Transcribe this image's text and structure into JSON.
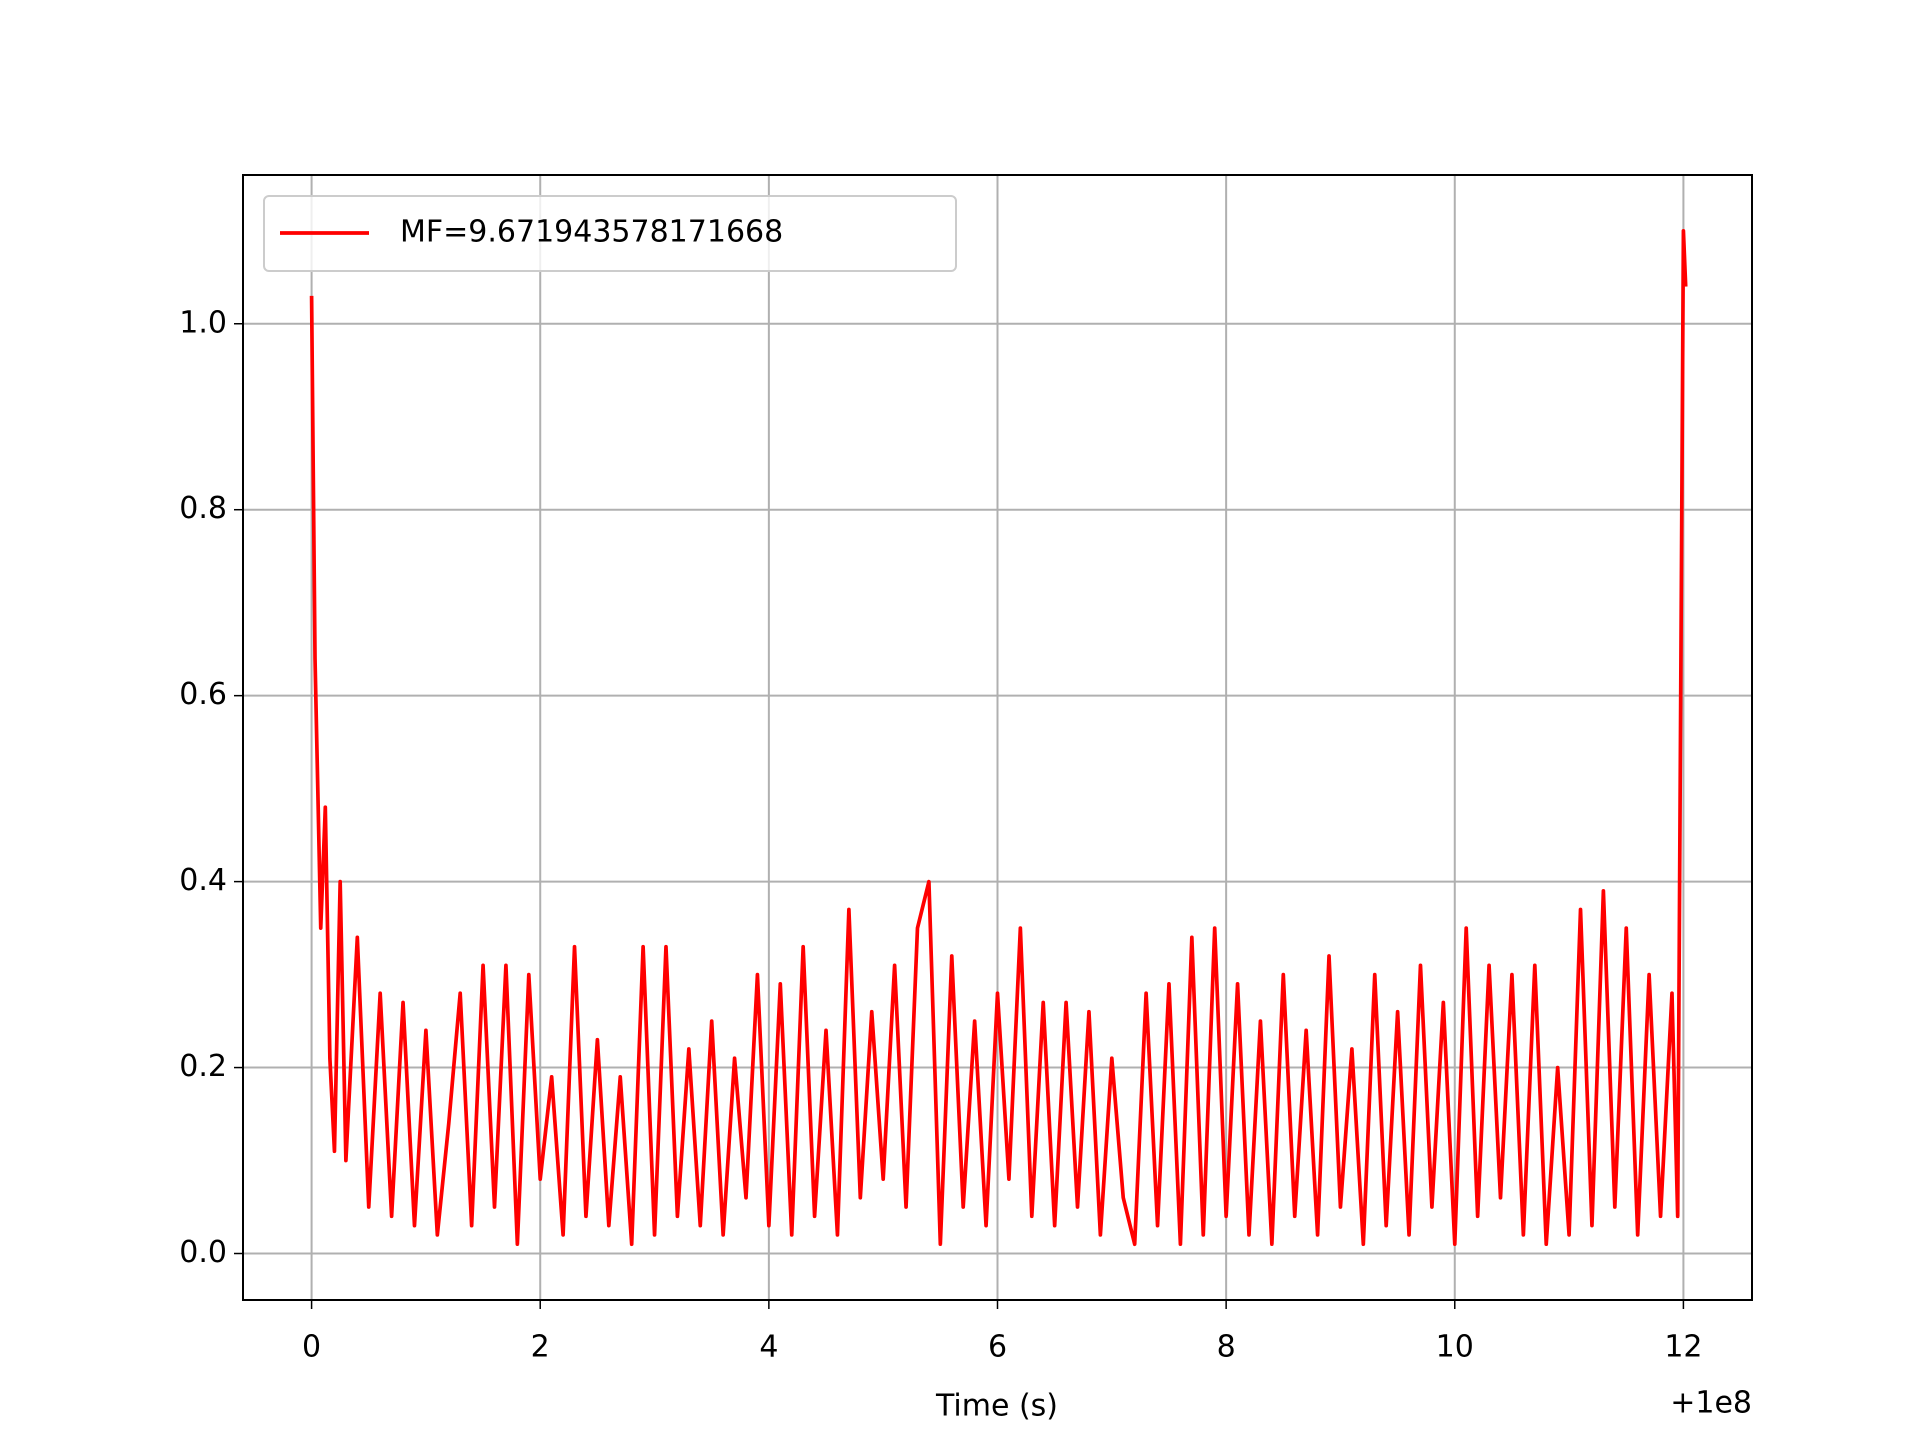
{
  "chart_data": {
    "type": "line",
    "xlabel": "Time (s)",
    "x_offset_label": "+1e8",
    "x": [
      0,
      0.03,
      0.08,
      0.12,
      0.16,
      0.2,
      0.25,
      0.3,
      0.4,
      0.5,
      0.6,
      0.7,
      0.8,
      0.9,
      1.0,
      1.1,
      1.2,
      1.3,
      1.4,
      1.5,
      1.6,
      1.7,
      1.8,
      1.9,
      2.0,
      2.1,
      2.2,
      2.3,
      2.4,
      2.5,
      2.6,
      2.7,
      2.8,
      2.9,
      3.0,
      3.1,
      3.2,
      3.3,
      3.4,
      3.5,
      3.6,
      3.7,
      3.8,
      3.9,
      4.0,
      4.1,
      4.2,
      4.3,
      4.4,
      4.5,
      4.6,
      4.7,
      4.8,
      4.9,
      5.0,
      5.1,
      5.2,
      5.3,
      5.4,
      5.5,
      5.6,
      5.7,
      5.8,
      5.9,
      6.0,
      6.1,
      6.2,
      6.3,
      6.4,
      6.5,
      6.6,
      6.7,
      6.8,
      6.9,
      7.0,
      7.1,
      7.2,
      7.3,
      7.4,
      7.5,
      7.6,
      7.7,
      7.8,
      7.9,
      8.0,
      8.1,
      8.2,
      8.3,
      8.4,
      8.5,
      8.6,
      8.7,
      8.8,
      8.9,
      9.0,
      9.1,
      9.2,
      9.3,
      9.4,
      9.5,
      9.6,
      9.7,
      9.8,
      9.9,
      10.0,
      10.1,
      10.2,
      10.3,
      10.4,
      10.5,
      10.6,
      10.7,
      10.8,
      10.9,
      11.0,
      11.1,
      11.2,
      11.3,
      11.4,
      11.5,
      11.6,
      11.7,
      11.8,
      11.9,
      11.95,
      12.0,
      12.02
    ],
    "series": [
      {
        "name": "MF=9.671943578171668",
        "color": "#ff0000",
        "values": [
          1.03,
          0.64,
          0.35,
          0.48,
          0.21,
          0.11,
          0.4,
          0.1,
          0.34,
          0.05,
          0.28,
          0.04,
          0.27,
          0.03,
          0.24,
          0.02,
          0.14,
          0.28,
          0.03,
          0.31,
          0.05,
          0.31,
          0.01,
          0.3,
          0.08,
          0.19,
          0.02,
          0.33,
          0.04,
          0.23,
          0.03,
          0.19,
          0.01,
          0.33,
          0.02,
          0.33,
          0.04,
          0.22,
          0.03,
          0.25,
          0.02,
          0.21,
          0.06,
          0.3,
          0.03,
          0.29,
          0.02,
          0.33,
          0.04,
          0.24,
          0.02,
          0.37,
          0.06,
          0.26,
          0.08,
          0.31,
          0.05,
          0.35,
          0.4,
          0.01,
          0.32,
          0.05,
          0.25,
          0.03,
          0.28,
          0.08,
          0.35,
          0.04,
          0.27,
          0.03,
          0.27,
          0.05,
          0.26,
          0.02,
          0.21,
          0.06,
          0.01,
          0.28,
          0.03,
          0.29,
          0.01,
          0.34,
          0.02,
          0.35,
          0.04,
          0.29,
          0.02,
          0.25,
          0.01,
          0.3,
          0.04,
          0.24,
          0.02,
          0.32,
          0.05,
          0.22,
          0.01,
          0.3,
          0.03,
          0.26,
          0.02,
          0.31,
          0.05,
          0.27,
          0.01,
          0.35,
          0.04,
          0.31,
          0.06,
          0.3,
          0.02,
          0.31,
          0.01,
          0.2,
          0.02,
          0.37,
          0.03,
          0.39,
          0.05,
          0.35,
          0.02,
          0.3,
          0.04,
          0.28,
          0.04,
          1.1,
          1.04
        ]
      }
    ],
    "xlim": [
      -0.6,
      12.6
    ],
    "ylim": [
      -0.05,
      1.16
    ],
    "xticks": [
      0,
      2,
      4,
      6,
      8,
      10,
      12
    ],
    "yticks": [
      {
        "value": 0,
        "label": "0.0"
      },
      0.2,
      0.4,
      0.6,
      0.8,
      {
        "value": 1,
        "label": "1.0"
      }
    ],
    "grid": true,
    "legend": "upper left"
  }
}
